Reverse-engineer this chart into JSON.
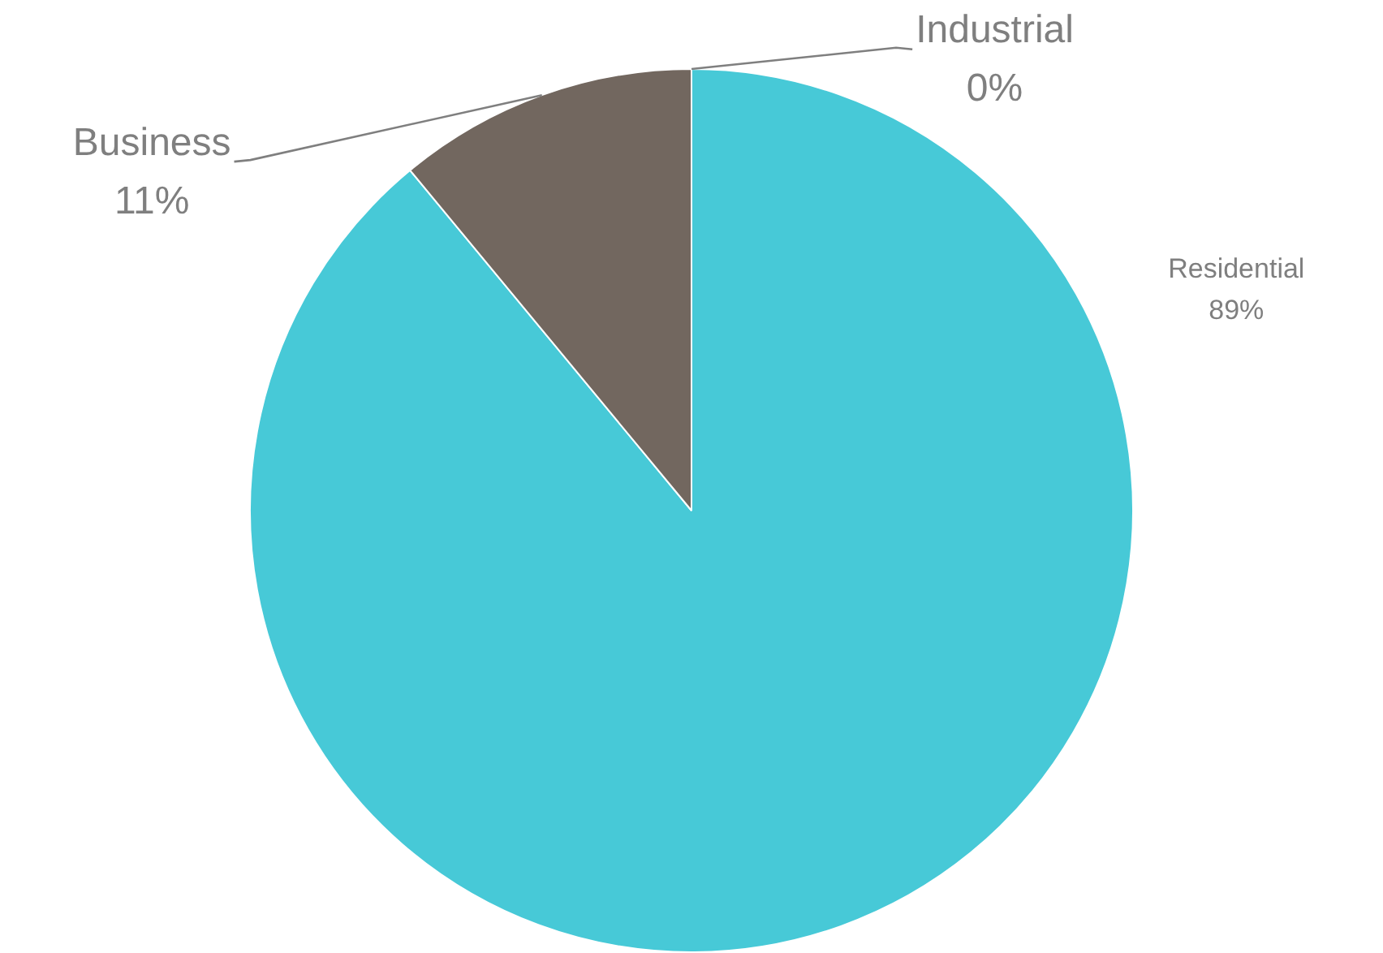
{
  "chart_data": {
    "type": "pie",
    "categories": [
      "Residential",
      "Business",
      "Industrial"
    ],
    "values": [
      89,
      11,
      0
    ],
    "colors": [
      "#47c9d7",
      "#72675f",
      "#a5a5a5"
    ],
    "value_labels": [
      "89%",
      "11%",
      "0%"
    ]
  }
}
